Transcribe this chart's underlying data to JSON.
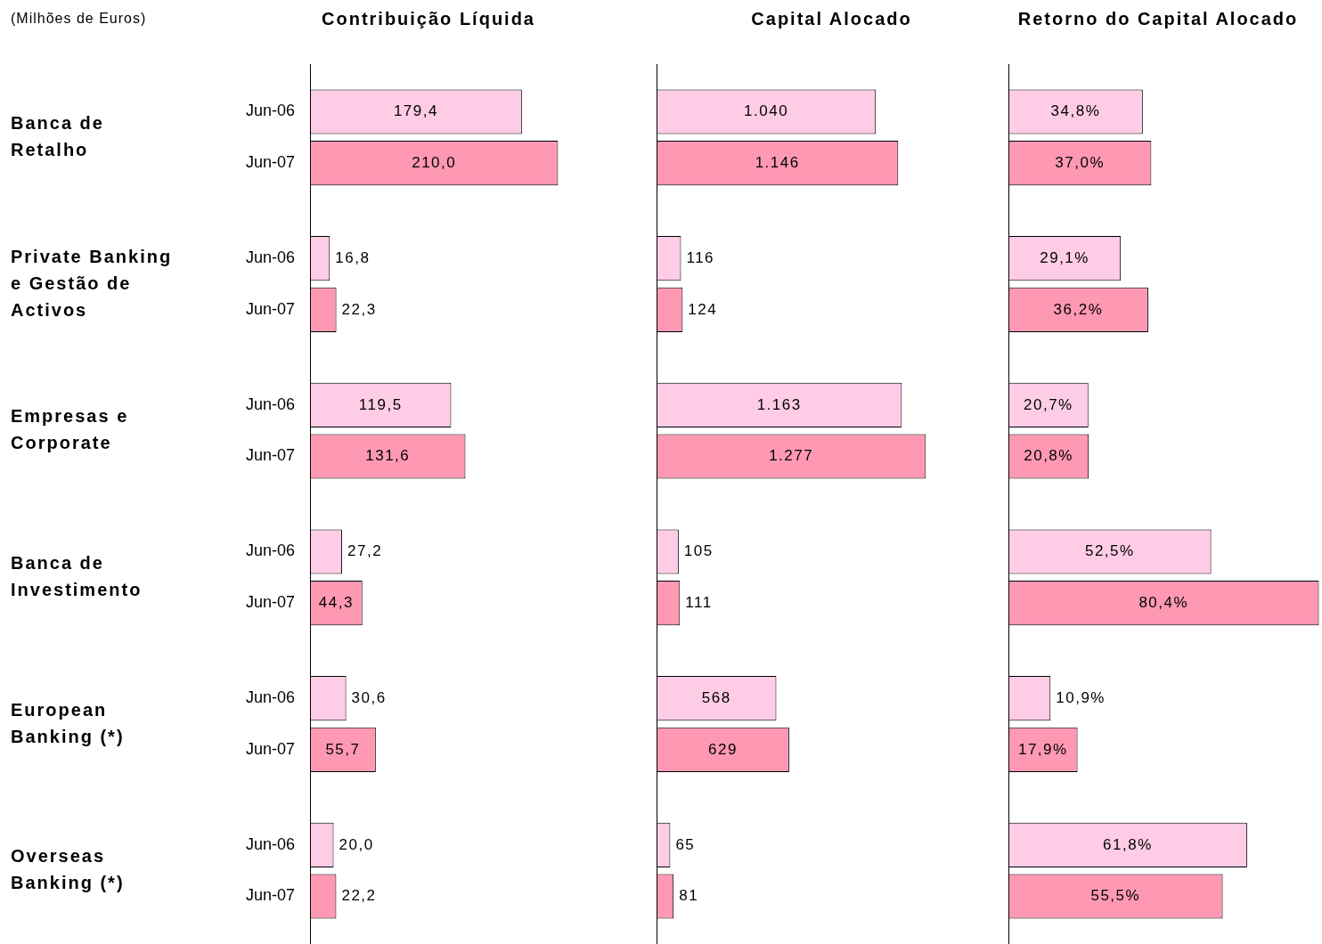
{
  "chart_data": [
    {
      "type": "bar",
      "orientation": "horizontal",
      "title": "Contribuição Líquida",
      "annotations": [
        "(Milhões de Euros)"
      ],
      "categories": [
        "Banca de Retalho",
        "Private Banking e Gestão de Activos",
        "Empresas e Corporate",
        "Banca de Investimento",
        "European Banking (*)",
        "Overseas Banking (*)"
      ],
      "series": [
        {
          "name": "Jun-06",
          "color": "#ffcce6",
          "values": [
            179.4,
            16.8,
            119.5,
            27.2,
            30.6,
            20.0
          ],
          "value_labels": [
            "179,4",
            "16,8",
            "119,5",
            "27,2",
            "30,6",
            "20,0"
          ]
        },
        {
          "name": "Jun-07",
          "color": "#ff99b3",
          "values": [
            210.0,
            22.3,
            131.6,
            44.3,
            55.7,
            22.2
          ],
          "value_labels": [
            "210,0",
            "22,3",
            "131,6",
            "44,3",
            "55,7",
            "22,2"
          ]
        }
      ],
      "tick_labels": "y",
      "grid": false,
      "legend": false
    },
    {
      "type": "bar",
      "orientation": "horizontal",
      "title": "Capital Alocado",
      "categories": [
        null,
        null,
        null,
        null,
        null,
        null
      ],
      "series": [
        {
          "color": "#ffcce6",
          "values": [
            1040,
            116,
            1163,
            105,
            568,
            65
          ],
          "value_labels": [
            "1.040",
            "116",
            "1.163",
            "105",
            "568",
            "65"
          ]
        },
        {
          "color": "#ff99b3",
          "values": [
            1146,
            124,
            1277,
            111,
            629,
            81
          ],
          "value_labels": [
            "1.146",
            "124",
            "1.277",
            "111",
            "629",
            "81"
          ]
        }
      ],
      "tick_labels": false,
      "grid": false,
      "legend": false
    },
    {
      "type": "bar",
      "orientation": "horizontal",
      "title": "Retorno do Capital Alocado",
      "categories": [
        null,
        null,
        null,
        null,
        null,
        null
      ],
      "series": [
        {
          "color": "#ffcce6",
          "values": [
            34.8,
            29.1,
            20.7,
            52.5,
            10.9,
            61.8
          ],
          "value_labels": [
            "34,8%",
            "29,1%",
            "20,7%",
            "52,5%",
            "10,9%",
            "61,8%"
          ]
        },
        {
          "color": "#ff99b3",
          "values": [
            37.0,
            36.2,
            20.8,
            80.4,
            17.9,
            55.5
          ],
          "value_labels": [
            "37,0%",
            "36,2%",
            "20,8%",
            "80,4%",
            "17,9%",
            "55,5%"
          ]
        }
      ],
      "tick_labels": false,
      "grid": false,
      "legend": false
    }
  ]
}
